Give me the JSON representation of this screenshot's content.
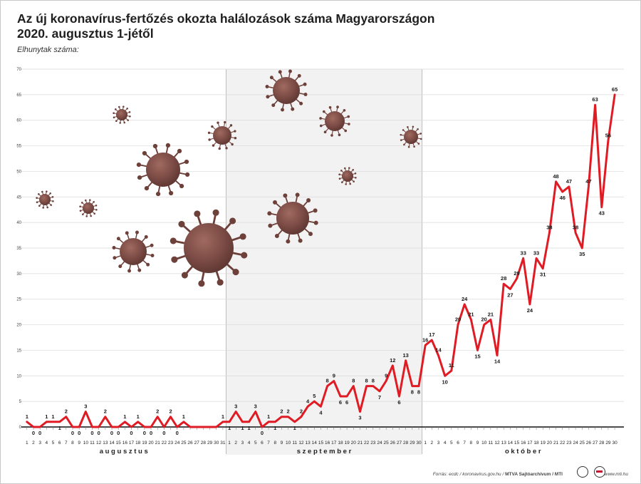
{
  "title_line1": "Az új koronavírus-fertőzés okozta halálozások száma Magyarországon",
  "title_line2": "2020. augusztus 1-jétől",
  "subtitle": "Elhunytak száma:",
  "footer": {
    "source_prefix": "Forrás: ecdc / koronavirus.gov.hu / ",
    "source_bold": "MTVA Sajtóarchívum / MTI",
    "url": "www.mti.hu"
  },
  "colors": {
    "line": "#e01b24",
    "virus": "#7a4a44",
    "grid": "#d9d9d9",
    "divider": "#bdbdbd",
    "band": "#f2f2f2"
  },
  "chart_data": {
    "type": "line",
    "title": "Az új koronavírus-fertőzés okozta halálozások száma Magyarországon 2020. augusztus 1-jétől",
    "ylabel": "Elhunytak száma:",
    "ylim": [
      0,
      70
    ],
    "yticks": [
      0,
      5,
      10,
      15,
      20,
      25,
      30,
      35,
      40,
      45,
      50,
      55,
      60,
      65,
      70
    ],
    "grid": true,
    "months": [
      {
        "name": "a u g u s z t u s",
        "days": 31
      },
      {
        "name": "s z e p t e m b e r",
        "days": 30
      },
      {
        "name": "o k t ó b e r",
        "days": 30
      }
    ],
    "series": [
      {
        "values": [
          1,
          0,
          0,
          1,
          1,
          1,
          2,
          0,
          0,
          3,
          0,
          0,
          2,
          0,
          0,
          1,
          0,
          1,
          0,
          0,
          2,
          0,
          2,
          0,
          1,
          0,
          0,
          0,
          0,
          0,
          1,
          1,
          3,
          1,
          1,
          3,
          0,
          1,
          1,
          2,
          2,
          1,
          2,
          4,
          5,
          4,
          8,
          9,
          6,
          6,
          8,
          3,
          8,
          8,
          7,
          9,
          12,
          6,
          13,
          8,
          8,
          16,
          17,
          14,
          10,
          11,
          20,
          24,
          21,
          15,
          20,
          21,
          14,
          28,
          27,
          29,
          33,
          24,
          33,
          31,
          38,
          48,
          46,
          47,
          38,
          35,
          47,
          63,
          43,
          56,
          65
        ],
        "labels": [
          "1",
          "0",
          "0",
          "1",
          "1",
          "1",
          "2",
          "0",
          "0",
          "3",
          "0",
          "0",
          "2",
          "0",
          "0",
          "1",
          "0",
          "1",
          "0",
          "0",
          "2",
          "0",
          "2",
          "0",
          "1",
          "",
          "",
          "",
          "",
          "",
          "1",
          "1",
          "3",
          "1",
          "1",
          "3",
          "0",
          "1",
          "1",
          "2",
          "2",
          "1",
          "2",
          "4",
          "5",
          "4",
          "8",
          "9",
          "6",
          "6",
          "8",
          "3",
          "8",
          "8",
          "7",
          "9",
          "12",
          "6",
          "13",
          "8",
          "8",
          "16",
          "17",
          "14",
          "10",
          "11",
          "20",
          "24",
          "21",
          "15",
          "20",
          "21",
          "14",
          "28",
          "27",
          "29",
          "33",
          "24",
          "33",
          "31",
          "38",
          "48",
          "46",
          "47",
          "38",
          "35",
          "47",
          "63",
          "43",
          "56",
          "65"
        ]
      }
    ]
  }
}
